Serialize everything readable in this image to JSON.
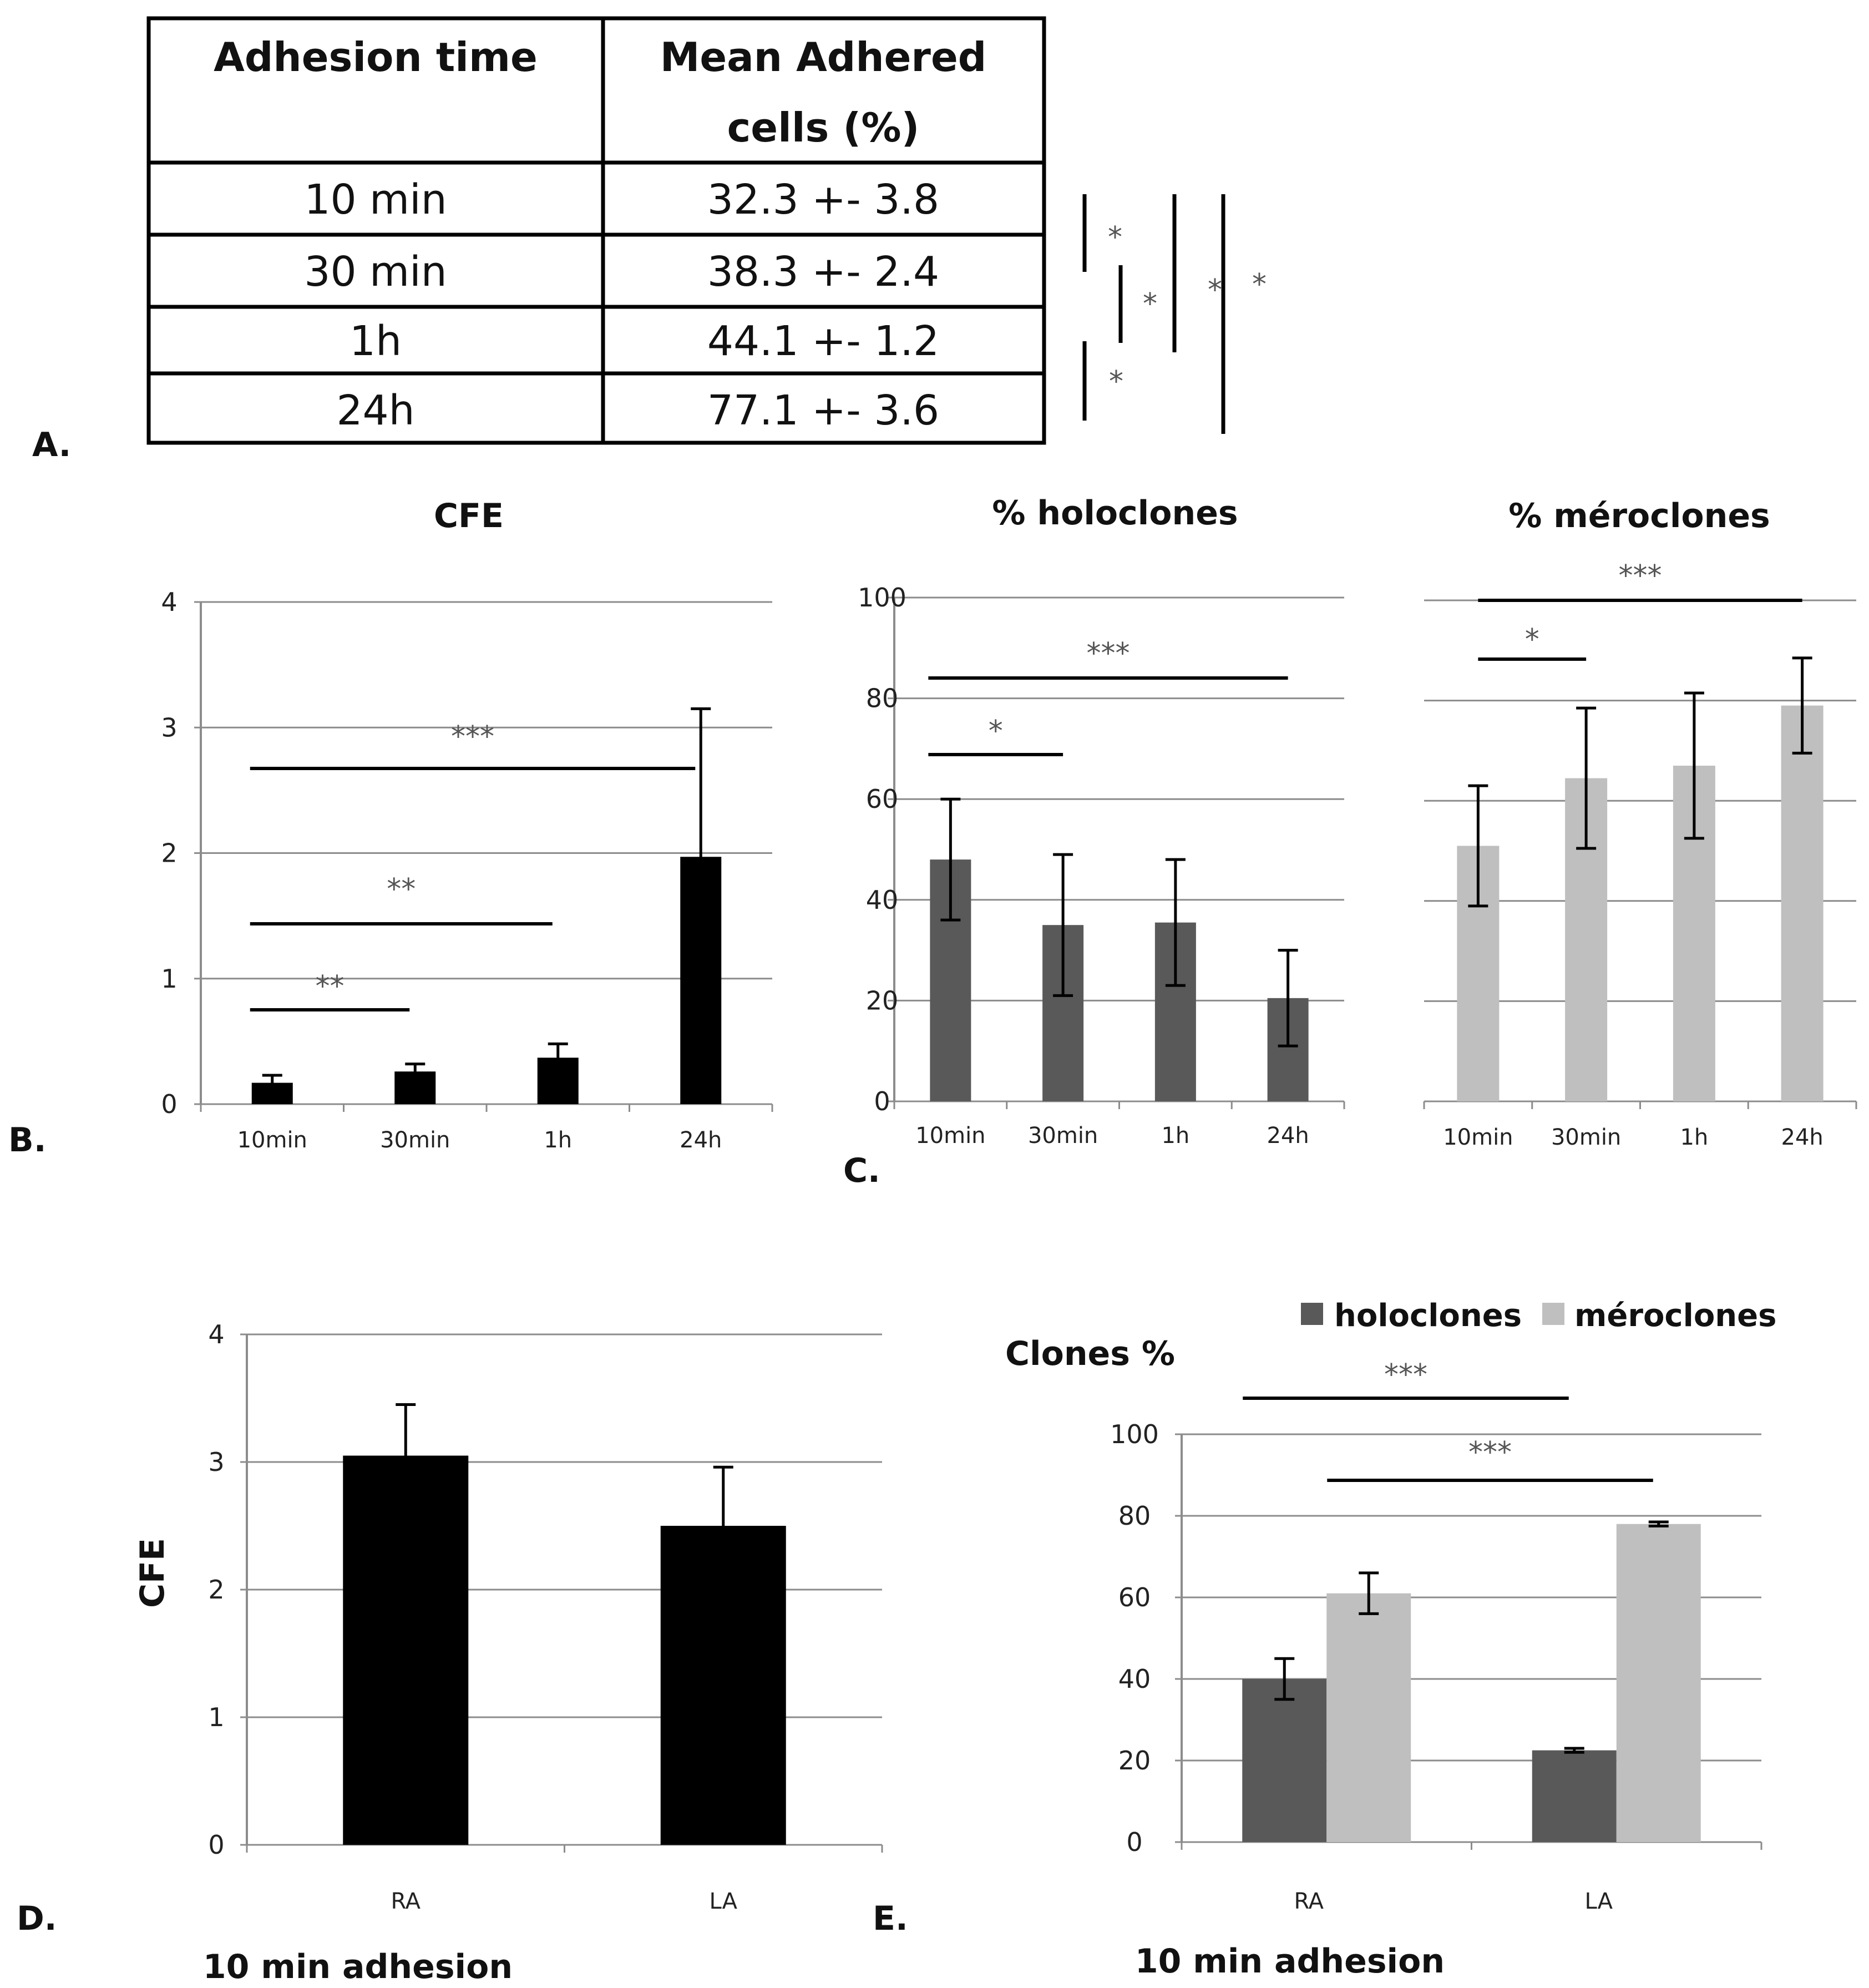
{
  "colors": {
    "black": "#000000",
    "dark": "#595959",
    "light": "#bfbfbf",
    "grid": "#8c8c8c",
    "axis": "#8c8c8c"
  },
  "panel_labels": {
    "a": "A.",
    "b": "B.",
    "c": "C.",
    "d": "D.",
    "e": "E."
  },
  "table": {
    "headers": [
      "Adhesion time",
      "Mean Adhered",
      "cells (%)"
    ],
    "rows": [
      {
        "time": "10 min",
        "value": "32.3 +- 3.8"
      },
      {
        "time": "30 min",
        "value": "38.3 +- 2.4"
      },
      {
        "time": "1h",
        "value": "44.1 +- 1.2"
      },
      {
        "time": "24h",
        "value": "77.1 +- 3.6"
      }
    ],
    "significance": [
      "*",
      "*",
      "*",
      "*",
      "*"
    ]
  },
  "chart_data": [
    {
      "id": "B",
      "type": "bar",
      "title": "CFE",
      "categories": [
        "10min",
        "30min",
        "1h",
        "24h"
      ],
      "series": [
        {
          "name": "CFE",
          "values": [
            0.17,
            0.26,
            0.37,
            1.97
          ],
          "errors": [
            0.06,
            0.06,
            0.11,
            1.18
          ]
        }
      ],
      "ylim": [
        0,
        4
      ],
      "yticks": [
        0,
        1,
        2,
        3,
        4
      ],
      "significance": [
        {
          "from": "10min",
          "to": "24h",
          "label": "***"
        },
        {
          "from": "10min",
          "to": "1h",
          "label": "**"
        },
        {
          "from": "10min",
          "to": "30min",
          "label": "**"
        }
      ]
    },
    {
      "id": "C1",
      "type": "bar",
      "title": "% holoclones",
      "categories": [
        "10min",
        "30min",
        "1h",
        "24h"
      ],
      "series": [
        {
          "name": "% holoclones",
          "values": [
            48,
            35,
            35.5,
            20.5
          ],
          "errors": [
            12,
            14,
            12.5,
            9.5
          ]
        }
      ],
      "ylim": [
        0,
        100
      ],
      "yticks": [
        0,
        20,
        40,
        60,
        80,
        100
      ],
      "significance": [
        {
          "from": "10min",
          "to": "24h",
          "label": "***"
        },
        {
          "from": "10min",
          "to": "30min",
          "label": "*"
        }
      ]
    },
    {
      "id": "C2",
      "type": "bar",
      "title": "% méroclones",
      "categories": [
        "10min",
        "30min",
        "1h",
        "24h"
      ],
      "series": [
        {
          "name": "% méroclones",
          "values": [
            51,
            64.5,
            67,
            79
          ],
          "errors": [
            12,
            14,
            14.5,
            9.5
          ]
        }
      ],
      "ylim": [
        0,
        100
      ],
      "yticks": [],
      "significance": [
        {
          "from": "10min",
          "to": "24h",
          "label": "***"
        },
        {
          "from": "10min",
          "to": "30min",
          "label": "*"
        }
      ]
    },
    {
      "id": "D",
      "type": "bar",
      "title": "",
      "xlabel": "10 min adhesion",
      "ylabel": "CFE",
      "categories": [
        "RA",
        "LA"
      ],
      "series": [
        {
          "name": "CFE",
          "values": [
            3.05,
            2.5
          ],
          "errors": [
            0.4,
            0.46
          ]
        }
      ],
      "ylim": [
        0,
        4
      ],
      "yticks": [
        0,
        1,
        2,
        3,
        4
      ]
    },
    {
      "id": "E",
      "type": "bar",
      "title": "Clones %",
      "xlabel": "10 min adhesion",
      "categories": [
        "RA",
        "LA"
      ],
      "series": [
        {
          "name": "holoclones",
          "values": [
            40,
            22.5
          ],
          "errors": [
            5,
            0.5
          ]
        },
        {
          "name": "méroclones",
          "values": [
            61,
            78
          ],
          "errors": [
            5,
            0.5
          ]
        }
      ],
      "ylim": [
        0,
        100
      ],
      "yticks": [
        0,
        20,
        40,
        60,
        80,
        100
      ],
      "legend": "top",
      "significance": [
        {
          "series": "holoclones",
          "label": "***"
        },
        {
          "series": "méroclones",
          "label": "***"
        }
      ]
    }
  ]
}
